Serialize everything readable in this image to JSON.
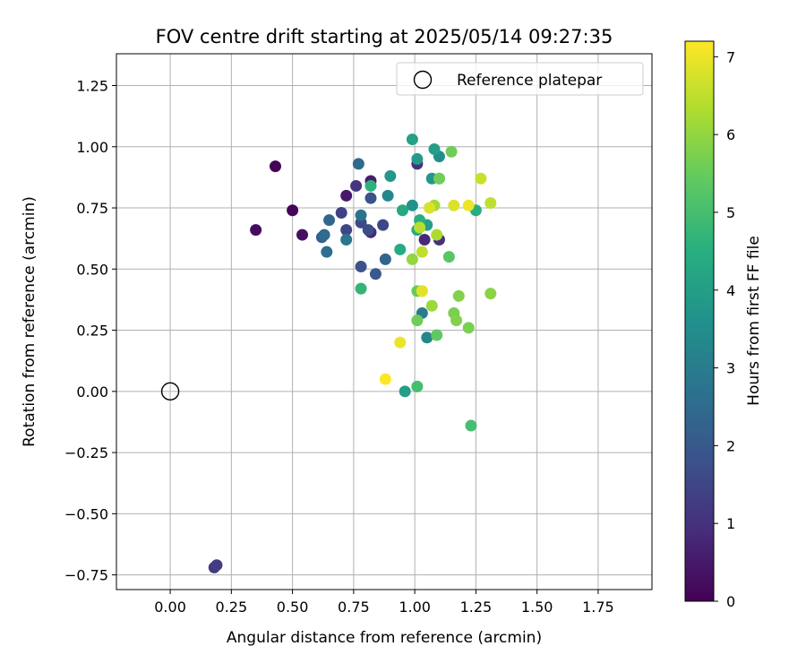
{
  "chart_data": {
    "type": "scatter",
    "title": "FOV centre drift starting at 2025/05/14 09:27:35",
    "xlabel": "Angular distance from reference (arcmin)",
    "ylabel": "Rotation from reference (arcmin)",
    "xlim": [
      -0.22,
      1.97
    ],
    "ylim": [
      -0.81,
      1.38
    ],
    "xticks": [
      0.0,
      0.25,
      0.5,
      0.75,
      1.0,
      1.25,
      1.5,
      1.75
    ],
    "xtick_labels": [
      "0.00",
      "0.25",
      "0.50",
      "0.75",
      "1.00",
      "1.25",
      "1.50",
      "1.75"
    ],
    "yticks": [
      -0.75,
      -0.5,
      -0.25,
      0.0,
      0.25,
      0.5,
      0.75,
      1.0,
      1.25
    ],
    "ytick_labels": [
      "−0.75",
      "−0.50",
      "−0.25",
      "0.00",
      "0.25",
      "0.50",
      "0.75",
      "1.00",
      "1.25"
    ],
    "grid": true,
    "legend": {
      "placement": "top-right",
      "entries": [
        "Reference platepar"
      ]
    },
    "reference_point": {
      "x": 0.0,
      "y": 0.0
    },
    "colorbar": {
      "label": "Hours from first FF file",
      "min": 0,
      "max": 7.2,
      "ticks": [
        0,
        1,
        2,
        3,
        4,
        5,
        6,
        7
      ],
      "tick_labels": [
        "0",
        "1",
        "2",
        "3",
        "4",
        "5",
        "6",
        "7"
      ],
      "colormap": "viridis"
    },
    "points": [
      {
        "x": 0.43,
        "y": 0.92,
        "c": 0.05
      },
      {
        "x": 0.5,
        "y": 0.74,
        "c": 0.1
      },
      {
        "x": 0.35,
        "y": 0.66,
        "c": 0.2
      },
      {
        "x": 0.54,
        "y": 0.64,
        "c": 0.3
      },
      {
        "x": 0.72,
        "y": 0.8,
        "c": 0.5
      },
      {
        "x": 0.82,
        "y": 0.86,
        "c": 0.6
      },
      {
        "x": 0.82,
        "y": 0.65,
        "c": 0.8
      },
      {
        "x": 1.04,
        "y": 0.62,
        "c": 0.8
      },
      {
        "x": 1.01,
        "y": 0.93,
        "c": 1.0
      },
      {
        "x": 1.1,
        "y": 0.62,
        "c": 1.0
      },
      {
        "x": 0.76,
        "y": 0.84,
        "c": 1.1
      },
      {
        "x": 0.18,
        "y": -0.72,
        "c": 1.2
      },
      {
        "x": 0.19,
        "y": -0.71,
        "c": 1.3
      },
      {
        "x": 0.7,
        "y": 0.73,
        "c": 1.4
      },
      {
        "x": 0.72,
        "y": 0.66,
        "c": 1.5
      },
      {
        "x": 0.87,
        "y": 0.68,
        "c": 1.5
      },
      {
        "x": 0.78,
        "y": 0.69,
        "c": 1.6
      },
      {
        "x": 0.81,
        "y": 0.66,
        "c": 1.7
      },
      {
        "x": 0.78,
        "y": 0.51,
        "c": 1.8
      },
      {
        "x": 0.82,
        "y": 0.79,
        "c": 1.8
      },
      {
        "x": 0.84,
        "y": 0.48,
        "c": 2.0
      },
      {
        "x": 0.62,
        "y": 0.63,
        "c": 2.2
      },
      {
        "x": 0.88,
        "y": 0.54,
        "c": 2.3
      },
      {
        "x": 0.65,
        "y": 0.7,
        "c": 2.4
      },
      {
        "x": 0.63,
        "y": 0.64,
        "c": 2.5
      },
      {
        "x": 0.77,
        "y": 0.93,
        "c": 2.5
      },
      {
        "x": 0.64,
        "y": 0.57,
        "c": 2.6
      },
      {
        "x": 0.78,
        "y": 0.72,
        "c": 2.7
      },
      {
        "x": 0.72,
        "y": 0.62,
        "c": 2.8
      },
      {
        "x": 1.03,
        "y": 0.32,
        "c": 3.0
      },
      {
        "x": 1.05,
        "y": 0.22,
        "c": 3.3
      },
      {
        "x": 0.89,
        "y": 0.8,
        "c": 3.3
      },
      {
        "x": 1.1,
        "y": 0.96,
        "c": 3.5
      },
      {
        "x": 0.99,
        "y": 0.76,
        "c": 3.6
      },
      {
        "x": 0.9,
        "y": 0.88,
        "c": 3.8
      },
      {
        "x": 1.07,
        "y": 0.87,
        "c": 3.8
      },
      {
        "x": 1.01,
        "y": 0.95,
        "c": 3.9
      },
      {
        "x": 0.96,
        "y": 0.0,
        "c": 4.0
      },
      {
        "x": 1.05,
        "y": 0.68,
        "c": 4.0
      },
      {
        "x": 1.08,
        "y": 0.99,
        "c": 4.0
      },
      {
        "x": 0.99,
        "y": 1.03,
        "c": 4.1
      },
      {
        "x": 0.95,
        "y": 0.74,
        "c": 4.3
      },
      {
        "x": 1.01,
        "y": 0.66,
        "c": 4.3
      },
      {
        "x": 0.94,
        "y": 0.58,
        "c": 4.4
      },
      {
        "x": 1.02,
        "y": 0.7,
        "c": 4.5
      },
      {
        "x": 1.25,
        "y": 0.74,
        "c": 4.5
      },
      {
        "x": 0.82,
        "y": 0.84,
        "c": 4.6
      },
      {
        "x": 1.1,
        "y": 0.87,
        "c": 4.6
      },
      {
        "x": 0.78,
        "y": 0.42,
        "c": 4.7
      },
      {
        "x": 1.23,
        "y": -0.14,
        "c": 5.0
      },
      {
        "x": 1.01,
        "y": 0.02,
        "c": 5.0
      },
      {
        "x": 1.14,
        "y": 0.55,
        "c": 5.3
      },
      {
        "x": 1.09,
        "y": 0.23,
        "c": 5.4
      },
      {
        "x": 1.01,
        "y": 0.41,
        "c": 5.5
      },
      {
        "x": 1.01,
        "y": 0.29,
        "c": 5.6
      },
      {
        "x": 1.1,
        "y": 0.87,
        "c": 5.6
      },
      {
        "x": 1.15,
        "y": 0.98,
        "c": 5.6
      },
      {
        "x": 1.22,
        "y": 0.26,
        "c": 5.7
      },
      {
        "x": 1.16,
        "y": 0.32,
        "c": 5.7
      },
      {
        "x": 1.17,
        "y": 0.29,
        "c": 5.8
      },
      {
        "x": 1.18,
        "y": 0.39,
        "c": 5.8
      },
      {
        "x": 1.31,
        "y": 0.4,
        "c": 5.9
      },
      {
        "x": 0.99,
        "y": 0.54,
        "c": 6.0
      },
      {
        "x": 1.03,
        "y": 0.41,
        "c": 6.0
      },
      {
        "x": 1.07,
        "y": 0.35,
        "c": 6.1
      },
      {
        "x": 1.08,
        "y": 0.76,
        "c": 6.2
      },
      {
        "x": 1.09,
        "y": 0.64,
        "c": 6.3
      },
      {
        "x": 1.02,
        "y": 0.67,
        "c": 6.4
      },
      {
        "x": 1.03,
        "y": 0.57,
        "c": 6.5
      },
      {
        "x": 1.31,
        "y": 0.77,
        "c": 6.5
      },
      {
        "x": 1.27,
        "y": 0.87,
        "c": 6.6
      },
      {
        "x": 1.06,
        "y": 0.75,
        "c": 6.8
      },
      {
        "x": 1.16,
        "y": 0.76,
        "c": 6.8
      },
      {
        "x": 1.03,
        "y": 0.41,
        "c": 6.9
      },
      {
        "x": 0.94,
        "y": 0.2,
        "c": 7.0
      },
      {
        "x": 1.22,
        "y": 0.76,
        "c": 7.0
      },
      {
        "x": 0.88,
        "y": 0.05,
        "c": 7.2
      }
    ]
  }
}
